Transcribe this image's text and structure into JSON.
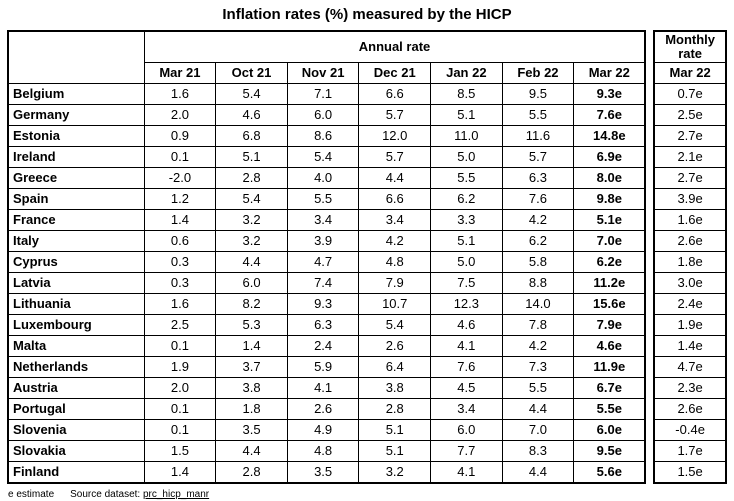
{
  "title": "Inflation rates (%) measured by the HICP",
  "footer": {
    "estimate_note": "e estimate",
    "source_label": "Source dataset:",
    "source_link_text": "prc_hicp_manr"
  },
  "chart_data": {
    "type": "table",
    "title": "Inflation rates (%) measured by the HICP",
    "column_groups": [
      "Annual rate",
      "Monthly rate"
    ],
    "annual_columns": [
      "Mar 21",
      "Oct 21",
      "Nov 21",
      "Dec 21",
      "Jan 22",
      "Feb 22",
      "Mar 22"
    ],
    "monthly_column": "Mar 22",
    "rows": [
      {
        "country": "Belgium",
        "annual": [
          "1.6",
          "5.4",
          "7.1",
          "6.6",
          "8.5",
          "9.5",
          "9.3e"
        ],
        "monthly": "0.7e"
      },
      {
        "country": "Germany",
        "annual": [
          "2.0",
          "4.6",
          "6.0",
          "5.7",
          "5.1",
          "5.5",
          "7.6e"
        ],
        "monthly": "2.5e"
      },
      {
        "country": "Estonia",
        "annual": [
          "0.9",
          "6.8",
          "8.6",
          "12.0",
          "11.0",
          "11.6",
          "14.8e"
        ],
        "monthly": "2.7e"
      },
      {
        "country": "Ireland",
        "annual": [
          "0.1",
          "5.1",
          "5.4",
          "5.7",
          "5.0",
          "5.7",
          "6.9e"
        ],
        "monthly": "2.1e"
      },
      {
        "country": "Greece",
        "annual": [
          "-2.0",
          "2.8",
          "4.0",
          "4.4",
          "5.5",
          "6.3",
          "8.0e"
        ],
        "monthly": "2.7e"
      },
      {
        "country": "Spain",
        "annual": [
          "1.2",
          "5.4",
          "5.5",
          "6.6",
          "6.2",
          "7.6",
          "9.8e"
        ],
        "monthly": "3.9e"
      },
      {
        "country": "France",
        "annual": [
          "1.4",
          "3.2",
          "3.4",
          "3.4",
          "3.3",
          "4.2",
          "5.1e"
        ],
        "monthly": "1.6e"
      },
      {
        "country": "Italy",
        "annual": [
          "0.6",
          "3.2",
          "3.9",
          "4.2",
          "5.1",
          "6.2",
          "7.0e"
        ],
        "monthly": "2.6e"
      },
      {
        "country": "Cyprus",
        "annual": [
          "0.3",
          "4.4",
          "4.7",
          "4.8",
          "5.0",
          "5.8",
          "6.2e"
        ],
        "monthly": "1.8e"
      },
      {
        "country": "Latvia",
        "annual": [
          "0.3",
          "6.0",
          "7.4",
          "7.9",
          "7.5",
          "8.8",
          "11.2e"
        ],
        "monthly": "3.0e"
      },
      {
        "country": "Lithuania",
        "annual": [
          "1.6",
          "8.2",
          "9.3",
          "10.7",
          "12.3",
          "14.0",
          "15.6e"
        ],
        "monthly": "2.4e"
      },
      {
        "country": "Luxembourg",
        "annual": [
          "2.5",
          "5.3",
          "6.3",
          "5.4",
          "4.6",
          "7.8",
          "7.9e"
        ],
        "monthly": "1.9e"
      },
      {
        "country": "Malta",
        "annual": [
          "0.1",
          "1.4",
          "2.4",
          "2.6",
          "4.1",
          "4.2",
          "4.6e"
        ],
        "monthly": "1.4e"
      },
      {
        "country": "Netherlands",
        "annual": [
          "1.9",
          "3.7",
          "5.9",
          "6.4",
          "7.6",
          "7.3",
          "11.9e"
        ],
        "monthly": "4.7e"
      },
      {
        "country": "Austria",
        "annual": [
          "2.0",
          "3.8",
          "4.1",
          "3.8",
          "4.5",
          "5.5",
          "6.7e"
        ],
        "monthly": "2.3e"
      },
      {
        "country": "Portugal",
        "annual": [
          "0.1",
          "1.8",
          "2.6",
          "2.8",
          "3.4",
          "4.4",
          "5.5e"
        ],
        "monthly": "2.6e"
      },
      {
        "country": "Slovenia",
        "annual": [
          "0.1",
          "3.5",
          "4.9",
          "5.1",
          "6.0",
          "7.0",
          "6.0e"
        ],
        "monthly": "-0.4e"
      },
      {
        "country": "Slovakia",
        "annual": [
          "1.5",
          "4.4",
          "4.8",
          "5.1",
          "7.7",
          "8.3",
          "9.5e"
        ],
        "monthly": "1.7e"
      },
      {
        "country": "Finland",
        "annual": [
          "1.4",
          "2.8",
          "3.5",
          "3.2",
          "4.1",
          "4.4",
          "5.6e"
        ],
        "monthly": "1.5e"
      }
    ]
  }
}
